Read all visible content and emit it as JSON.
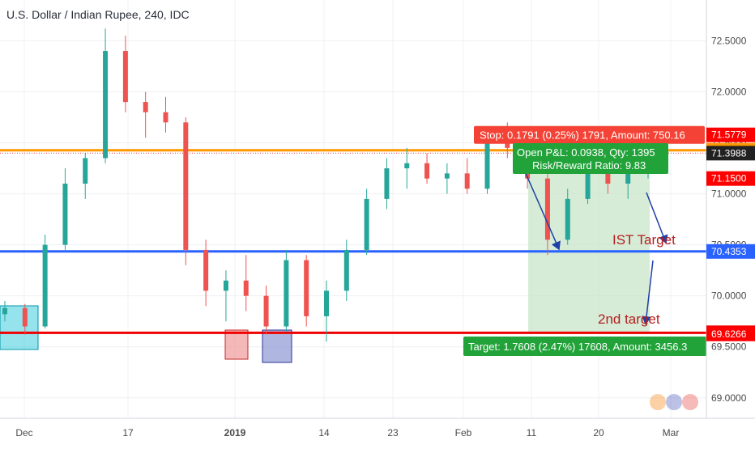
{
  "chart_title": "U.S. Dollar / Indian Rupee, 240, IDC",
  "chart_data": {
    "type": "candlestick",
    "title": "U.S. Dollar / Indian Rupee, 240, IDC",
    "ylim": [
      68.8,
      72.9
    ],
    "y_ticks": [
      72.5,
      72.0,
      71.5,
      71.0,
      70.5,
      70.0,
      69.5,
      69.0
    ],
    "y_tick_labels": [
      "72.5000",
      "72.0000",
      "71.5000",
      "71.0000",
      "70.5000",
      "70.0000",
      "69.5000",
      "69.0000"
    ],
    "x_ticks": [
      "Dec",
      "17",
      "2019",
      "14",
      "23",
      "Feb",
      "11",
      "20",
      "Mar"
    ],
    "grid": true,
    "horizontal_levels": [
      {
        "value": 71.4273,
        "label": "71.4273",
        "color": "#ff9800"
      },
      {
        "value": 70.4353,
        "label": "70.4353",
        "color": "#2962ff"
      },
      {
        "value": 69.638,
        "label": "69.6380",
        "color": "#f00000"
      }
    ],
    "price_labels": [
      {
        "value": 71.5779,
        "label": "71.5779",
        "color": "#ff0000"
      },
      {
        "value": 71.3988,
        "label": "71.3988",
        "color": "#212121"
      },
      {
        "value": 71.15,
        "label": "71.1500",
        "color": "#ff0000"
      },
      {
        "value": 69.6266,
        "label": "69.6266",
        "color": "#ff0000"
      }
    ],
    "current_price": 71.3988,
    "position": {
      "stop_text": "Stop: 0.1791 (0.25%) 1791, Amount: 750.16",
      "pnl_text": "Open P&L: 0.0938, Qty: 1395",
      "risk_reward_text": "Risk/Reward Ratio: 9.83",
      "target_text": "Target: 1.7608 (2.47%) 17608, Amount: 3456.3",
      "entry": 71.3988,
      "stop": 71.5779,
      "target": 69.638
    },
    "annotations": [
      "IST Target",
      "2nd target"
    ],
    "candles": [
      {
        "x": "Dec",
        "o": 69.82,
        "h": 69.95,
        "l": 69.75,
        "c": 69.88
      },
      {
        "x": "Dec",
        "o": 69.88,
        "h": 69.92,
        "l": 69.62,
        "c": 69.7
      },
      {
        "x": "Dec",
        "o": 69.7,
        "h": 70.6,
        "l": 69.68,
        "c": 70.5
      },
      {
        "x": "Dec",
        "o": 70.5,
        "h": 71.25,
        "l": 70.45,
        "c": 71.1
      },
      {
        "x": "Dec",
        "o": 71.1,
        "h": 71.4,
        "l": 70.95,
        "c": 71.35
      },
      {
        "x": "Dec",
        "o": 71.35,
        "h": 72.62,
        "l": 71.3,
        "c": 72.4
      },
      {
        "x": "Dec",
        "o": 72.4,
        "h": 72.55,
        "l": 71.8,
        "c": 71.9
      },
      {
        "x": "17",
        "o": 71.9,
        "h": 72.0,
        "l": 71.55,
        "c": 71.8
      },
      {
        "x": "17",
        "o": 71.8,
        "h": 71.95,
        "l": 71.6,
        "c": 71.7
      },
      {
        "x": "17",
        "o": 71.7,
        "h": 71.75,
        "l": 70.3,
        "c": 70.45
      },
      {
        "x": "17",
        "o": 70.45,
        "h": 70.55,
        "l": 69.9,
        "c": 70.05
      },
      {
        "x": "17",
        "o": 70.05,
        "h": 70.25,
        "l": 69.75,
        "c": 70.15
      },
      {
        "x": "17",
        "o": 70.15,
        "h": 70.4,
        "l": 69.85,
        "c": 70.0
      },
      {
        "x": "2019",
        "o": 70.0,
        "h": 70.1,
        "l": 69.62,
        "c": 69.7
      },
      {
        "x": "2019",
        "o": 69.7,
        "h": 70.45,
        "l": 69.65,
        "c": 70.35
      },
      {
        "x": "2019",
        "o": 70.35,
        "h": 70.4,
        "l": 69.7,
        "c": 69.8
      },
      {
        "x": "2019",
        "o": 69.8,
        "h": 70.15,
        "l": 69.55,
        "c": 70.05
      },
      {
        "x": "2019",
        "o": 70.05,
        "h": 70.55,
        "l": 69.95,
        "c": 70.45
      },
      {
        "x": "14",
        "o": 70.45,
        "h": 71.05,
        "l": 70.4,
        "c": 70.95
      },
      {
        "x": "14",
        "o": 70.95,
        "h": 71.35,
        "l": 70.85,
        "c": 71.25
      },
      {
        "x": "23",
        "o": 71.25,
        "h": 71.45,
        "l": 71.05,
        "c": 71.3
      },
      {
        "x": "23",
        "o": 71.3,
        "h": 71.4,
        "l": 71.1,
        "c": 71.15
      },
      {
        "x": "23",
        "o": 71.15,
        "h": 71.3,
        "l": 71.0,
        "c": 71.2
      },
      {
        "x": "Feb",
        "o": 71.2,
        "h": 71.35,
        "l": 71.0,
        "c": 71.05
      },
      {
        "x": "Feb",
        "o": 71.05,
        "h": 71.6,
        "l": 71.0,
        "c": 71.55
      },
      {
        "x": "Feb",
        "o": 71.55,
        "h": 71.7,
        "l": 71.35,
        "c": 71.45
      },
      {
        "x": "11",
        "o": 71.45,
        "h": 71.5,
        "l": 71.05,
        "c": 71.15
      },
      {
        "x": "11",
        "o": 71.15,
        "h": 71.2,
        "l": 70.4,
        "c": 70.55
      },
      {
        "x": "11",
        "o": 70.55,
        "h": 71.05,
        "l": 70.5,
        "c": 70.95
      },
      {
        "x": "20",
        "o": 70.95,
        "h": 71.45,
        "l": 70.9,
        "c": 71.35
      },
      {
        "x": "20",
        "o": 71.35,
        "h": 71.4,
        "l": 71.0,
        "c": 71.1
      },
      {
        "x": "20",
        "o": 71.1,
        "h": 71.35,
        "l": 70.95,
        "c": 71.3
      },
      {
        "x": "20",
        "o": 71.3,
        "h": 71.45,
        "l": 71.15,
        "c": 71.4
      }
    ]
  },
  "colors": {
    "up": "#26a69a",
    "down": "#ef5350",
    "grid": "#eef0f3",
    "axis_text": "#4a4a4a",
    "zone_profit": "#c8e6c9",
    "zone_loss": "#ffcdd2",
    "arrow": "#1e3fa8",
    "annotation": "#b71c1c",
    "box_cyan": "#4dd0e1",
    "box_pink": "#ef9a9a",
    "box_blue": "#7986cb"
  },
  "icons": [
    "watermark-logo-icon"
  ]
}
